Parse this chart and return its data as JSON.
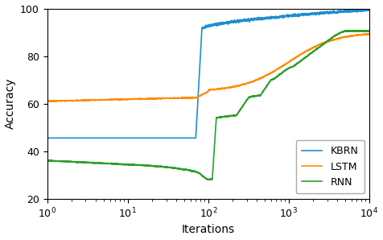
{
  "title": "",
  "xlabel": "Iterations",
  "ylabel": "Accuracy",
  "ylim": [
    20,
    100
  ],
  "legend_labels": [
    "KBRN",
    "LSTM",
    "RNN"
  ],
  "colors": [
    "#1f8ecf",
    "#ff8c00",
    "#2ca02c"
  ],
  "linewidth": 1.2,
  "background_color": "#ffffff",
  "yticks": [
    20,
    40,
    60,
    80,
    100
  ],
  "legend_loc": "lower right"
}
